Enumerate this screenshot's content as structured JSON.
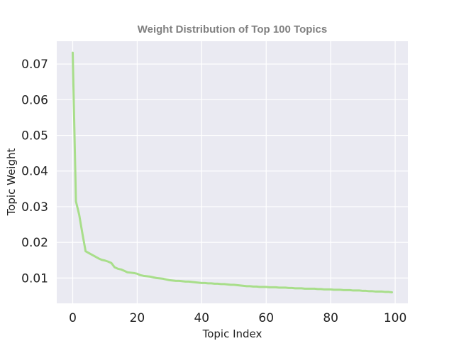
{
  "chart_data": {
    "type": "line",
    "title": "Weight Distribution of Top 100 Topics",
    "xlabel": "Topic Index",
    "ylabel": "Topic Weight",
    "xlim": [
      -4.95,
      103.95
    ],
    "ylim": [
      0.0029,
      0.0764
    ],
    "xticks": [
      0,
      20,
      40,
      60,
      80,
      100
    ],
    "xtick_labels": [
      "0",
      "20",
      "40",
      "60",
      "80",
      "100"
    ],
    "yticks": [
      0.01,
      0.02,
      0.03,
      0.04,
      0.05,
      0.06,
      0.07
    ],
    "ytick_labels": [
      "0.01",
      "0.02",
      "0.03",
      "0.04",
      "0.05",
      "0.06",
      "0.07"
    ],
    "grid": true,
    "legend": "none",
    "colors": {
      "line": "#a8de8a",
      "plot_bg": "#eaeaf2",
      "grid": "#ffffff"
    },
    "series": [
      {
        "x": [
          0,
          1,
          2,
          3,
          4,
          5,
          6,
          7,
          8,
          9,
          10,
          11,
          12,
          13,
          14,
          15,
          16,
          17,
          18,
          19,
          20,
          21,
          22,
          23,
          24,
          25,
          26,
          27,
          28,
          29,
          30,
          31,
          32,
          33,
          34,
          35,
          36,
          37,
          38,
          39,
          40,
          41,
          42,
          43,
          44,
          45,
          46,
          47,
          48,
          49,
          50,
          51,
          52,
          53,
          54,
          55,
          56,
          57,
          58,
          59,
          60,
          61,
          62,
          63,
          64,
          65,
          66,
          67,
          68,
          69,
          70,
          71,
          72,
          73,
          74,
          75,
          76,
          77,
          78,
          79,
          80,
          81,
          82,
          83,
          84,
          85,
          86,
          87,
          88,
          89,
          90,
          91,
          92,
          93,
          94,
          95,
          96,
          97,
          98,
          99
        ],
        "y": [
          0.0732,
          0.0315,
          0.0278,
          0.0225,
          0.0175,
          0.017,
          0.0165,
          0.016,
          0.0155,
          0.0151,
          0.0149,
          0.0146,
          0.0142,
          0.013,
          0.0126,
          0.0124,
          0.012,
          0.0116,
          0.0115,
          0.0114,
          0.0112,
          0.0108,
          0.0106,
          0.0105,
          0.0104,
          0.0102,
          0.01,
          0.0099,
          0.0098,
          0.0096,
          0.0094,
          0.0093,
          0.0092,
          0.0092,
          0.0091,
          0.009,
          0.009,
          0.0089,
          0.0088,
          0.0087,
          0.0086,
          0.0086,
          0.0085,
          0.0085,
          0.0084,
          0.0084,
          0.0083,
          0.0083,
          0.0082,
          0.0081,
          0.0081,
          0.008,
          0.0079,
          0.0078,
          0.0077,
          0.0077,
          0.0076,
          0.0076,
          0.0075,
          0.0075,
          0.0075,
          0.0074,
          0.0074,
          0.0074,
          0.0073,
          0.0073,
          0.0073,
          0.0072,
          0.0072,
          0.0071,
          0.0071,
          0.0071,
          0.007,
          0.007,
          0.007,
          0.007,
          0.0069,
          0.0069,
          0.0068,
          0.0068,
          0.0068,
          0.0067,
          0.0067,
          0.0067,
          0.0066,
          0.0066,
          0.0066,
          0.0065,
          0.0065,
          0.0065,
          0.0064,
          0.0064,
          0.0063,
          0.0063,
          0.0062,
          0.0062,
          0.0062,
          0.0061,
          0.0061,
          0.006
        ]
      }
    ]
  }
}
